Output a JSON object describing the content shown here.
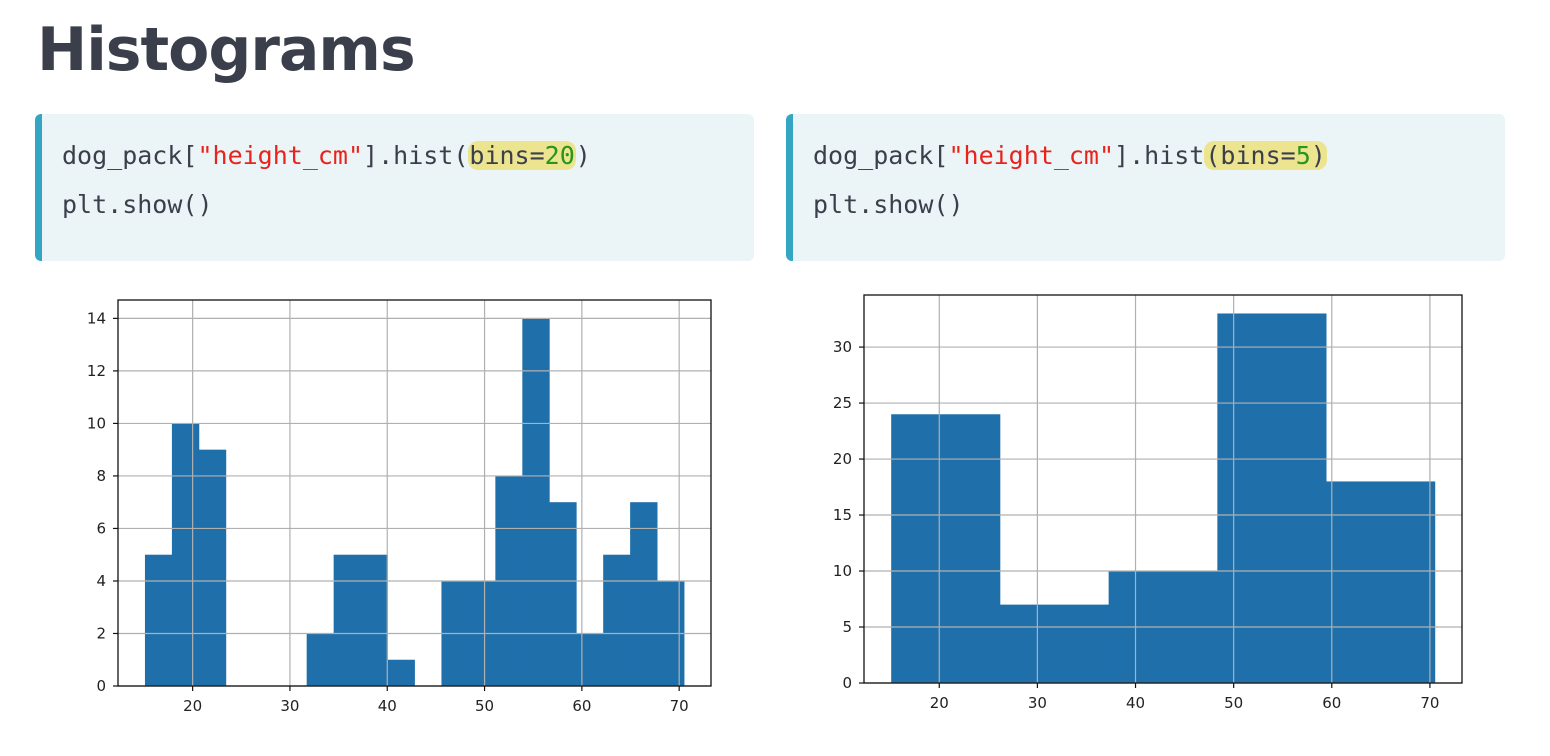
{
  "page": {
    "title": "Histograms"
  },
  "code_blocks": [
    {
      "obj": "dog_pack[",
      "key": "\"height_cm\"",
      "method": "].hist(",
      "arg_name": "bins=",
      "arg_value": "20",
      "close": ")",
      "line2": "plt.show()"
    },
    {
      "obj": "dog_pack[",
      "key": "\"height_cm\"",
      "method": "].hist",
      "arg_open": "(",
      "arg_name": "bins=",
      "arg_value": "5",
      "close": ")",
      "line2": "plt.show()"
    }
  ],
  "colors": {
    "bar": "#1f6fab",
    "grid": "#b0b0b0",
    "code_bg": "#ebf4f7",
    "code_accent": "#34a6c4",
    "string": "#e8231c",
    "number": "#28951d",
    "highlight": "#ece48f"
  },
  "chart_data": [
    {
      "type": "bar",
      "title": "",
      "xlabel": "",
      "ylabel": "",
      "bins": 20,
      "bin_edges": [
        15.1,
        17.87,
        20.64,
        23.41,
        26.18,
        28.95,
        31.72,
        34.49,
        37.26,
        40.03,
        42.8,
        45.57,
        48.34,
        51.11,
        53.88,
        56.65,
        59.42,
        62.19,
        64.96,
        67.73,
        70.5
      ],
      "values": [
        5,
        10,
        9,
        0,
        0,
        0,
        2,
        5,
        5,
        1,
        0,
        4,
        4,
        8,
        14,
        7,
        2,
        5,
        7,
        4
      ],
      "xlim": [
        12.33,
        73.27
      ],
      "ylim": [
        0,
        14.7
      ],
      "xticks": [
        20,
        30,
        40,
        50,
        60,
        70
      ],
      "yticks": [
        0,
        2,
        4,
        6,
        8,
        10,
        12,
        14
      ],
      "grid": true
    },
    {
      "type": "bar",
      "title": "",
      "xlabel": "",
      "ylabel": "",
      "bins": 5,
      "bin_edges": [
        15.1,
        26.18,
        37.26,
        48.34,
        59.42,
        70.5
      ],
      "values": [
        24,
        7,
        10,
        33,
        18
      ],
      "xlim": [
        12.33,
        73.27
      ],
      "ylim": [
        0,
        34.65
      ],
      "xticks": [
        20,
        30,
        40,
        50,
        60,
        70
      ],
      "yticks": [
        0,
        5,
        10,
        15,
        20,
        25,
        30
      ],
      "grid": true
    }
  ]
}
